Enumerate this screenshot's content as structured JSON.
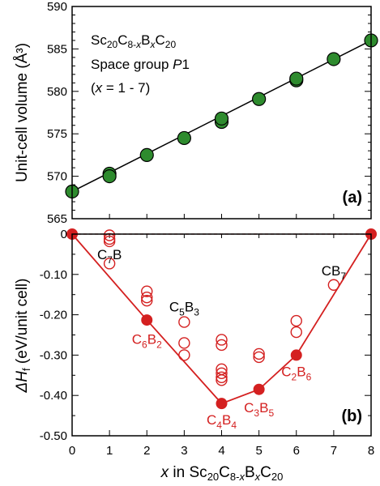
{
  "chart_data": [
    {
      "panel_label": "(a)",
      "type": "scatter",
      "ylabel": "Unit-cell volume (Å³)",
      "ylim": [
        565,
        590
      ],
      "yticks": [
        565,
        570,
        575,
        580,
        585,
        590
      ],
      "xlim": [
        0,
        8
      ],
      "annotation": {
        "formula": "Sc20C8-xBxC20",
        "space_group": "Space group P1",
        "range": "(x = 1 - 7)"
      },
      "marker_color": "#2e8b2e",
      "series": [
        {
          "points": [
            [
              0,
              568.2
            ],
            [
              1,
              570.3
            ],
            [
              1,
              570.0
            ],
            [
              2,
              572.5
            ],
            [
              3,
              574.5
            ],
            [
              4,
              576.4
            ],
            [
              4,
              576.8
            ],
            [
              5,
              579.1
            ],
            [
              6,
              581.3
            ],
            [
              6,
              581.5
            ],
            [
              7,
              583.8
            ],
            [
              8,
              586.0
            ]
          ]
        }
      ],
      "fit_line": {
        "x": [
          0,
          8
        ],
        "y": [
          568.2,
          586.0
        ]
      }
    },
    {
      "panel_label": "(b)",
      "type": "scatter",
      "ylabel": "ΔHf (eV/unit cell)",
      "xlabel": "x in Sc20C8-xBxC20",
      "ylim": [
        -0.5,
        0.0
      ],
      "yticks": [
        0,
        -0.1,
        -0.2,
        -0.3,
        -0.4,
        -0.5
      ],
      "ytick_labels": [
        "0",
        "-0.10",
        "-0.20",
        "-0.30",
        "-0.40",
        "-0.50"
      ],
      "xlim": [
        0,
        8
      ],
      "xticks": [
        0,
        1,
        2,
        3,
        4,
        5,
        6,
        7,
        8
      ],
      "color": "#d42020",
      "hull": {
        "x": [
          0,
          2,
          4,
          5,
          6,
          8
        ],
        "y": [
          0,
          -0.213,
          -0.42,
          -0.385,
          -0.3,
          0
        ]
      },
      "open_points": {
        "x": [
          1,
          1,
          1,
          1,
          2,
          2,
          2,
          3,
          3,
          3,
          4,
          4,
          4,
          4,
          4,
          4,
          5,
          5,
          6,
          6,
          7
        ],
        "y": [
          -0.003,
          -0.012,
          -0.018,
          -0.073,
          -0.142,
          -0.157,
          -0.165,
          -0.218,
          -0.27,
          -0.3,
          -0.262,
          -0.275,
          -0.335,
          -0.345,
          -0.355,
          -0.362,
          -0.297,
          -0.305,
          -0.215,
          -0.243,
          -0.126
        ]
      },
      "labels": [
        {
          "base": "C",
          "sub1": "7",
          "el2": "B",
          "sub2": "",
          "x": 1,
          "y": -0.05,
          "color": "black"
        },
        {
          "base": "C",
          "sub1": "6",
          "el2": "B",
          "sub2": "2",
          "x": 2,
          "y": -0.26,
          "color": "red"
        },
        {
          "base": "C",
          "sub1": "5",
          "el2": "B",
          "sub2": "3",
          "x": 3,
          "y": -0.18,
          "color": "black"
        },
        {
          "base": "C",
          "sub1": "4",
          "el2": "B",
          "sub2": "4",
          "x": 4,
          "y": -0.46,
          "color": "red"
        },
        {
          "base": "C",
          "sub1": "3",
          "el2": "B",
          "sub2": "5",
          "x": 5,
          "y": -0.43,
          "color": "red"
        },
        {
          "base": "C",
          "sub1": "2",
          "el2": "B",
          "sub2": "6",
          "x": 6,
          "y": -0.34,
          "color": "red"
        },
        {
          "base": "C",
          "sub1": "",
          "el2": "B",
          "sub2": "7",
          "x": 7,
          "y": -0.09,
          "color": "black"
        }
      ],
      "hline": 0
    }
  ]
}
